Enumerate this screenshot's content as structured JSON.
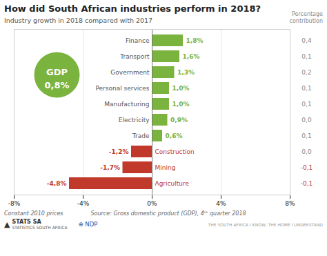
{
  "chart_data": {
    "type": "bar",
    "orientation": "horizontal",
    "title": "How did South African industries perform in 2018?",
    "subtitle": "Industry growth in 2018 compared with 2017",
    "categories": [
      "Finance",
      "Transport",
      "Government",
      "Personal services",
      "Manufacturing",
      "Electricity",
      "Trade",
      "Construction",
      "Mining",
      "Agriculture"
    ],
    "values": [
      1.8,
      1.6,
      1.3,
      1.0,
      1.0,
      0.9,
      0.6,
      -1.2,
      -1.7,
      -4.8
    ],
    "value_labels": [
      "1,8%",
      "1,6%",
      "1,3%",
      "1,0%",
      "1,0%",
      "0,9%",
      "0,6%",
      "-1,2%",
      "-1,7%",
      "-4,8%"
    ],
    "data_labels": true,
    "colors": [
      "#7ab33e",
      "#7ab33e",
      "#7ab33e",
      "#7ab33e",
      "#7ab33e",
      "#7ab33e",
      "#7ab33e",
      "#c0392b",
      "#c0392b",
      "#c0392b"
    ],
    "xlim": [
      -8,
      8
    ],
    "xticks": [
      {
        "value": -8,
        "label": "-8%"
      },
      {
        "value": -4,
        "label": "-4%"
      },
      {
        "value": 0,
        "label": "0%"
      },
      {
        "value": 4,
        "label": "4%"
      },
      {
        "value": 8,
        "label": "8%"
      }
    ],
    "grid": true,
    "contribution_title": "Percentage\ncontribution",
    "contributions": [
      0.4,
      0.1,
      0.2,
      0.1,
      0.1,
      0.0,
      0.1,
      0.0,
      -0.1,
      -0.1
    ],
    "contribution_labels": [
      "0,4",
      "0,1",
      "0,2",
      "0,1",
      "0,1",
      "0,0",
      "0,1",
      "0,0",
      "-0,1",
      "-0,1"
    ],
    "annotations": [
      "GDP",
      "0,8%"
    ],
    "footnotes": [
      "Constant 2010 prices",
      "Source: Gross domestic product (GDP), 4ᵗʰ quarter 2018"
    ],
    "logos": [
      "▲",
      "STATS SA",
      "STATISTICS SOUTH AFRICA",
      "⊕ NDP"
    ],
    "tagline": "THE SOUTH AFRICA I KNOW, THE HOME I UNDERSTAND"
  }
}
